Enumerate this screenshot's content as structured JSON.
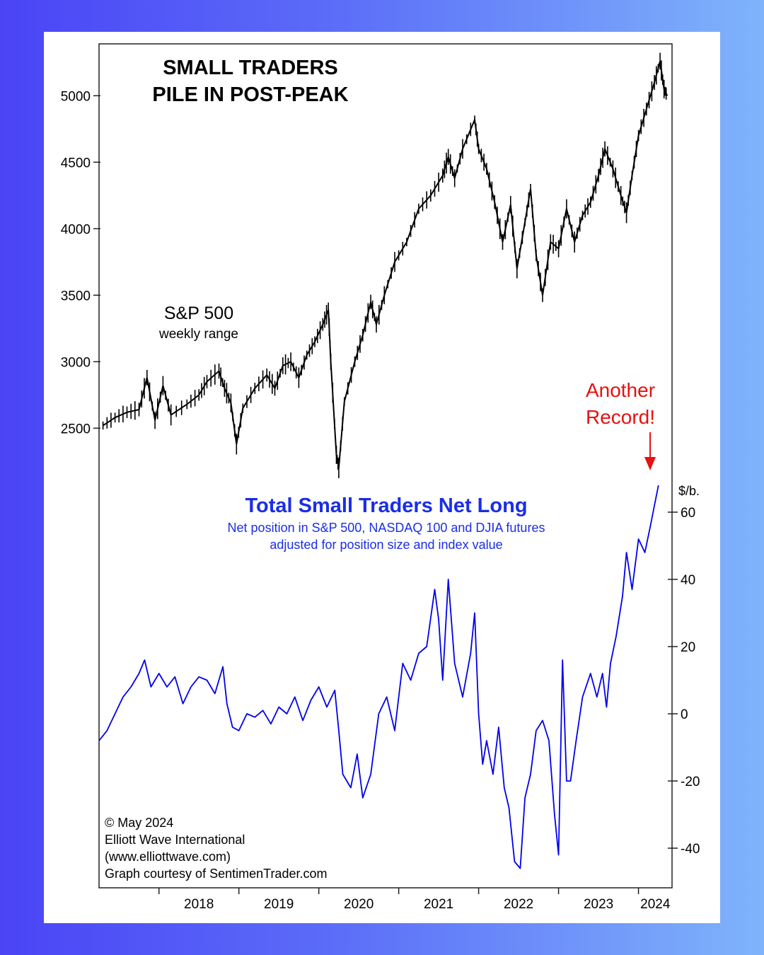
{
  "chart_data": [
    {
      "type": "line",
      "title": "SMALL TRADERS",
      "title_line2": "PILE IN POST-PEAK",
      "series_label": "S&P 500",
      "series_sublabel": "weekly range",
      "y_ticks": [
        "2500",
        "3000",
        "3500",
        "4000",
        "4500",
        "5000"
      ],
      "ylim": [
        2140,
        5390
      ],
      "x_start": 2017.25,
      "x_end": 2024.42,
      "series": [
        {
          "name": "S&P 500",
          "color": "#000000",
          "points": [
            [
              2017.3,
              2520
            ],
            [
              2017.45,
              2580
            ],
            [
              2017.6,
              2620
            ],
            [
              2017.75,
              2640
            ],
            [
              2017.85,
              2880
            ],
            [
              2017.95,
              2560
            ],
            [
              2018.05,
              2820
            ],
            [
              2018.15,
              2600
            ],
            [
              2018.35,
              2680
            ],
            [
              2018.5,
              2750
            ],
            [
              2018.6,
              2850
            ],
            [
              2018.75,
              2930
            ],
            [
              2018.82,
              2800
            ],
            [
              2018.9,
              2690
            ],
            [
              2018.97,
              2380
            ],
            [
              2019.05,
              2650
            ],
            [
              2019.2,
              2800
            ],
            [
              2019.35,
              2900
            ],
            [
              2019.45,
              2800
            ],
            [
              2019.55,
              2970
            ],
            [
              2019.65,
              3000
            ],
            [
              2019.75,
              2880
            ],
            [
              2019.85,
              3050
            ],
            [
              2019.95,
              3150
            ],
            [
              2020.05,
              3280
            ],
            [
              2020.12,
              3390
            ],
            [
              2020.15,
              3000
            ],
            [
              2020.22,
              2300
            ],
            [
              2020.25,
              2200
            ],
            [
              2020.32,
              2700
            ],
            [
              2020.45,
              3000
            ],
            [
              2020.55,
              3200
            ],
            [
              2020.65,
              3450
            ],
            [
              2020.72,
              3280
            ],
            [
              2020.82,
              3500
            ],
            [
              2020.95,
              3750
            ],
            [
              2021.1,
              3900
            ],
            [
              2021.25,
              4150
            ],
            [
              2021.4,
              4250
            ],
            [
              2021.55,
              4400
            ],
            [
              2021.62,
              4540
            ],
            [
              2021.7,
              4380
            ],
            [
              2021.8,
              4600
            ],
            [
              2021.95,
              4820
            ],
            [
              2022.0,
              4600
            ],
            [
              2022.1,
              4450
            ],
            [
              2022.2,
              4200
            ],
            [
              2022.3,
              3900
            ],
            [
              2022.4,
              4180
            ],
            [
              2022.48,
              3700
            ],
            [
              2022.58,
              4050
            ],
            [
              2022.65,
              4300
            ],
            [
              2022.72,
              3800
            ],
            [
              2022.8,
              3500
            ],
            [
              2022.9,
              3900
            ],
            [
              2023.0,
              3850
            ],
            [
              2023.1,
              4150
            ],
            [
              2023.2,
              3900
            ],
            [
              2023.3,
              4100
            ],
            [
              2023.4,
              4200
            ],
            [
              2023.5,
              4400
            ],
            [
              2023.58,
              4600
            ],
            [
              2023.68,
              4450
            ],
            [
              2023.78,
              4250
            ],
            [
              2023.85,
              4120
            ],
            [
              2023.92,
              4400
            ],
            [
              2024.0,
              4700
            ],
            [
              2024.1,
              4900
            ],
            [
              2024.2,
              5100
            ],
            [
              2024.27,
              5260
            ],
            [
              2024.32,
              5050
            ],
            [
              2024.36,
              5000
            ]
          ]
        }
      ]
    },
    {
      "type": "line",
      "title": "Total Small Traders Net Long",
      "subtitle_line1": "Net position in S&P 500, NASDAQ 100  and DJIA futures",
      "subtitle_line2": "adjusted for position size and index value",
      "ylabel": "$/b.",
      "y_ticks": [
        "-40",
        "-20",
        "0",
        "20",
        "40",
        "60"
      ],
      "ylim": [
        -50,
        69
      ],
      "x_start": 2017.25,
      "x_end": 2024.42,
      "x_ticks": [
        "2018",
        "2019",
        "2020",
        "2021",
        "2022",
        "2023",
        "2024"
      ],
      "annotation_line1": "Another",
      "annotation_line2": "Record!",
      "series": [
        {
          "name": "Total Small Traders Net Long",
          "color": "#0000ee",
          "points": [
            [
              2017.25,
              -8
            ],
            [
              2017.35,
              -5
            ],
            [
              2017.45,
              0
            ],
            [
              2017.55,
              5
            ],
            [
              2017.65,
              8
            ],
            [
              2017.75,
              12
            ],
            [
              2017.82,
              16
            ],
            [
              2017.9,
              8
            ],
            [
              2018.0,
              12
            ],
            [
              2018.1,
              8
            ],
            [
              2018.2,
              11
            ],
            [
              2018.3,
              3
            ],
            [
              2018.4,
              8
            ],
            [
              2018.5,
              11
            ],
            [
              2018.6,
              10
            ],
            [
              2018.7,
              6
            ],
            [
              2018.8,
              14
            ],
            [
              2018.85,
              3
            ],
            [
              2018.92,
              -4
            ],
            [
              2019.0,
              -5
            ],
            [
              2019.1,
              0
            ],
            [
              2019.2,
              -1
            ],
            [
              2019.3,
              1
            ],
            [
              2019.4,
              -3
            ],
            [
              2019.5,
              2
            ],
            [
              2019.6,
              0
            ],
            [
              2019.7,
              5
            ],
            [
              2019.8,
              -2
            ],
            [
              2019.9,
              4
            ],
            [
              2020.0,
              8
            ],
            [
              2020.1,
              2
            ],
            [
              2020.2,
              7
            ],
            [
              2020.25,
              -5
            ],
            [
              2020.3,
              -18
            ],
            [
              2020.4,
              -22
            ],
            [
              2020.48,
              -12
            ],
            [
              2020.55,
              -25
            ],
            [
              2020.65,
              -18
            ],
            [
              2020.75,
              0
            ],
            [
              2020.85,
              5
            ],
            [
              2020.95,
              -5
            ],
            [
              2021.05,
              15
            ],
            [
              2021.15,
              10
            ],
            [
              2021.25,
              18
            ],
            [
              2021.35,
              20
            ],
            [
              2021.45,
              37
            ],
            [
              2021.5,
              28
            ],
            [
              2021.55,
              10
            ],
            [
              2021.62,
              40
            ],
            [
              2021.7,
              15
            ],
            [
              2021.8,
              5
            ],
            [
              2021.9,
              18
            ],
            [
              2021.95,
              30
            ],
            [
              2022.0,
              0
            ],
            [
              2022.05,
              -15
            ],
            [
              2022.1,
              -8
            ],
            [
              2022.18,
              -18
            ],
            [
              2022.25,
              -4
            ],
            [
              2022.32,
              -22
            ],
            [
              2022.38,
              -28
            ],
            [
              2022.45,
              -44
            ],
            [
              2022.52,
              -46
            ],
            [
              2022.58,
              -25
            ],
            [
              2022.65,
              -18
            ],
            [
              2022.72,
              -5
            ],
            [
              2022.8,
              -2
            ],
            [
              2022.88,
              -8
            ],
            [
              2022.95,
              -30
            ],
            [
              2023.0,
              -42
            ],
            [
              2023.05,
              16
            ],
            [
              2023.1,
              -20
            ],
            [
              2023.15,
              -20
            ],
            [
              2023.22,
              -8
            ],
            [
              2023.3,
              5
            ],
            [
              2023.4,
              12
            ],
            [
              2023.48,
              5
            ],
            [
              2023.55,
              12
            ],
            [
              2023.6,
              2
            ],
            [
              2023.65,
              15
            ],
            [
              2023.72,
              23
            ],
            [
              2023.8,
              35
            ],
            [
              2023.85,
              48
            ],
            [
              2023.92,
              37
            ],
            [
              2024.0,
              52
            ],
            [
              2024.08,
              48
            ],
            [
              2024.15,
              56
            ],
            [
              2024.2,
              62
            ],
            [
              2024.25,
              68
            ]
          ]
        }
      ]
    }
  ],
  "credits": {
    "line1": "© May 2024",
    "line2": "Elliott Wave International",
    "line3": "(www.elliottwave.com)",
    "line4": "Graph courtesy of SentimenTrader.com"
  }
}
